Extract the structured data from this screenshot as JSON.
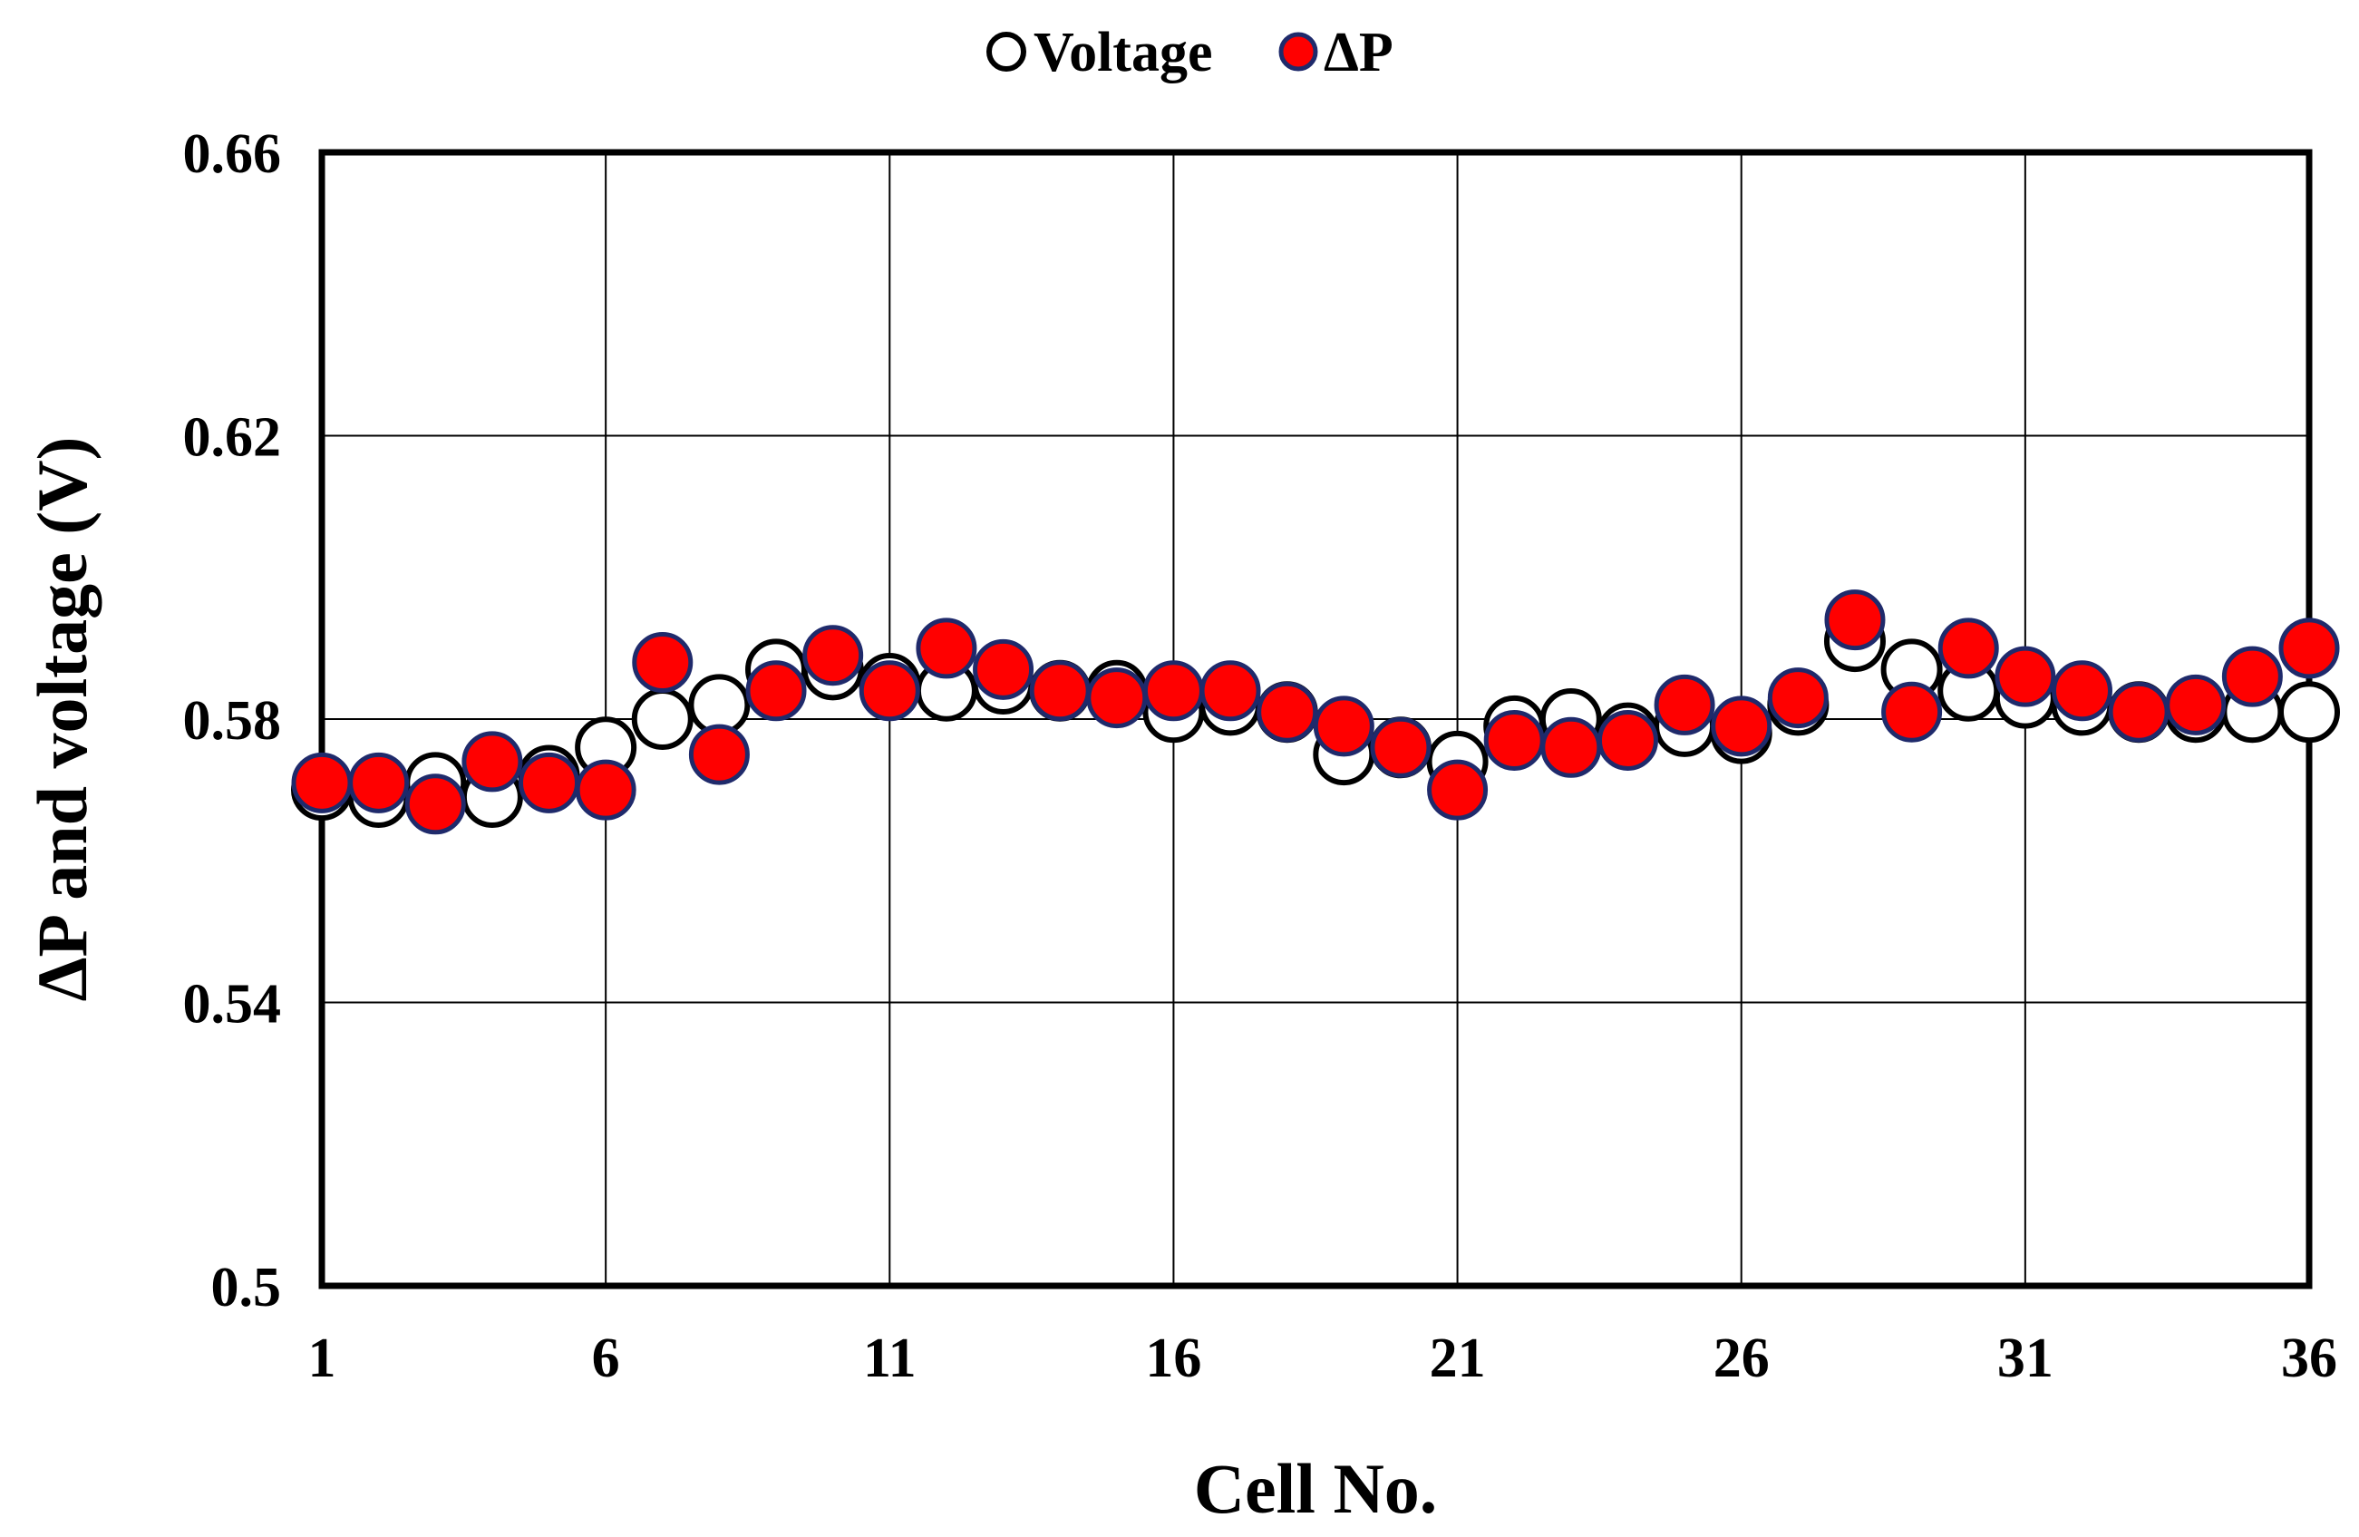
{
  "chart_data": {
    "type": "scatter",
    "title": "",
    "xlabel": "Cell No.",
    "ylabel": "ΔP and voltage (V)",
    "xlim": [
      1,
      36
    ],
    "ylim": [
      0.5,
      0.66
    ],
    "x_ticks": [
      1,
      6,
      11,
      16,
      21,
      26,
      31,
      36
    ],
    "y_ticks": [
      0.5,
      0.54,
      0.58,
      0.62,
      0.66
    ],
    "y_tick_labels": [
      "0.5",
      "0.54",
      "0.58",
      "0.62",
      "0.66"
    ],
    "grid": true,
    "legend_position": "top-center",
    "x": [
      1,
      2,
      3,
      4,
      5,
      6,
      7,
      8,
      9,
      10,
      11,
      12,
      13,
      14,
      15,
      16,
      17,
      18,
      19,
      20,
      21,
      22,
      23,
      24,
      25,
      26,
      27,
      28,
      29,
      30,
      31,
      32,
      33,
      34,
      35,
      36
    ],
    "series": [
      {
        "name": "Voltage",
        "marker": "open-circle",
        "color": "#ffffff",
        "edge_color": "#000000",
        "values": [
          0.57,
          0.569,
          0.571,
          0.569,
          0.572,
          0.576,
          0.58,
          0.582,
          0.587,
          0.587,
          0.585,
          0.584,
          0.585,
          0.584,
          0.584,
          0.581,
          0.582,
          0.581,
          0.575,
          0.576,
          0.574,
          0.579,
          0.58,
          0.578,
          0.579,
          0.578,
          0.582,
          0.591,
          0.587,
          0.584,
          0.583,
          0.582,
          0.581,
          0.581,
          0.581,
          0.581
        ]
      },
      {
        "name": "ΔP",
        "marker": "filled-circle",
        "color": "#ff0000",
        "edge_color": "#1f2a6b",
        "values": [
          0.571,
          0.571,
          0.568,
          0.574,
          0.571,
          0.57,
          0.588,
          0.575,
          0.584,
          0.589,
          0.584,
          0.59,
          0.587,
          0.584,
          0.583,
          0.584,
          0.584,
          0.581,
          0.579,
          0.576,
          0.57,
          0.577,
          0.576,
          0.577,
          0.582,
          0.579,
          0.583,
          0.594,
          0.581,
          0.59,
          0.586,
          0.584,
          0.581,
          0.582,
          0.586,
          0.59
        ]
      }
    ]
  }
}
